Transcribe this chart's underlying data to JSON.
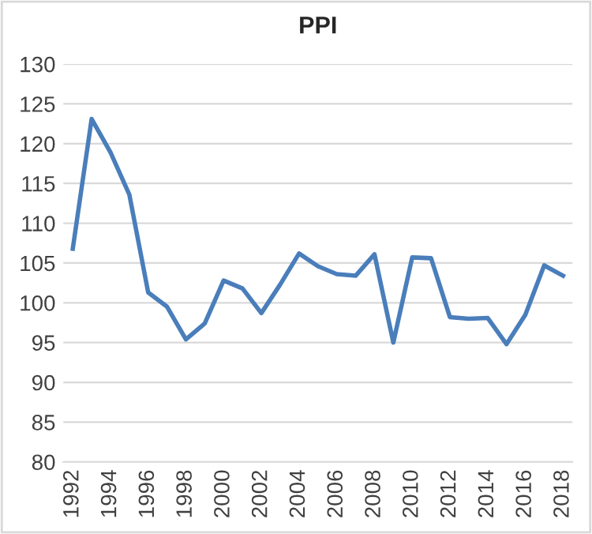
{
  "chart_data": {
    "type": "line",
    "title": "PPI",
    "categories": [
      "1992",
      null,
      "1994",
      null,
      "1996",
      null,
      "1998",
      null,
      "2000",
      null,
      "2002",
      null,
      "2004",
      null,
      "2006",
      null,
      "2008",
      null,
      "2010",
      null,
      "2012",
      null,
      "2014",
      null,
      "2016",
      null,
      "2018"
    ],
    "series": [
      {
        "color": "#4a7ebb",
        "values": [
          106.8,
          123.1,
          118.9,
          113.6,
          101.3,
          99.5,
          95.4,
          97.4,
          102.8,
          101.8,
          98.7,
          102.3,
          106.2,
          104.6,
          103.6,
          103.4,
          106.1,
          95.0,
          105.7,
          105.6,
          98.2,
          98.0,
          98.1,
          94.8,
          98.5,
          104.7,
          103.4
        ]
      }
    ],
    "ylim": [
      80,
      130
    ],
    "yticks": [
      80,
      85,
      90,
      95,
      100,
      105,
      110,
      115,
      120,
      125,
      130
    ],
    "grid": "y",
    "legend": false,
    "marker": "none",
    "line_style": "solid"
  }
}
